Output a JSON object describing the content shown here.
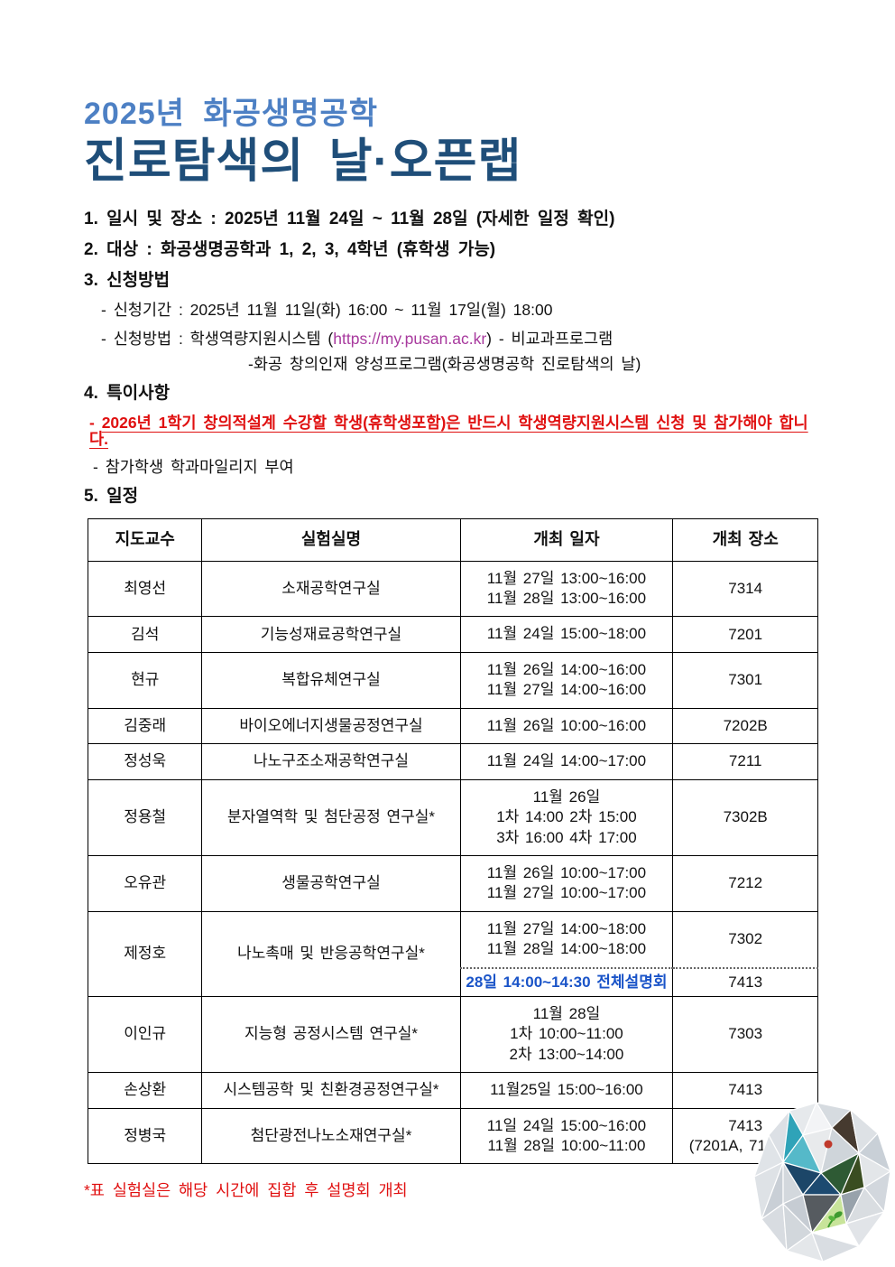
{
  "title": {
    "line1": "2025년 화공생명공학",
    "line2": "진로탐색의 날·오픈랩"
  },
  "notice": {
    "item1": "1. 일시 및 장소 : 2025년 11월 24일 ~ 11월 28일 (자세한 일정 확인)",
    "item2": "2. 대상 : 화공생명공학과 1, 2, 3, 4학년 (휴학생 가능)",
    "item3": "3. 신청방법",
    "item3_sub1": "- 신청기간 : 2025년 11월 11일(화) 16:00 ~ 11월 17일(월) 18:00",
    "item3_sub2_prefix": "- 신청방법 : 학생역량지원시스템 (",
    "item3_sub2_link": "https://my.pusan.ac.kr",
    "item3_sub2_suffix": ") - 비교과프로그램",
    "item3_sub3": "-화공 창의인재 양성프로그램(화공생명공학 진로탐색의 날)",
    "item4": "4. 특이사항",
    "item4_sub1_dash": "-",
    "item4_sub1": "2026년 1학기 창의적설계 수강할 학생(휴학생포함)은 반드시 학생역량지원시스템 신청 및 참가해야 합니다.",
    "item4_sub2": "- 참가학생 학과마일리지 부여",
    "item5": "5. 일정"
  },
  "schedule": {
    "columns": [
      "지도교수",
      "실험실명",
      "개최 일자",
      "개최 장소"
    ],
    "rows": [
      {
        "professor": "최영선",
        "lab": "소재공학연구실",
        "dates": [
          "11월 27일 13:00~16:00",
          "11월 28일 13:00~16:00"
        ],
        "location": "7314"
      },
      {
        "professor": "김석",
        "lab": "기능성재료공학연구실",
        "dates": [
          "11월 24일 15:00~18:00"
        ],
        "location": "7201"
      },
      {
        "professor": "현규",
        "lab": "복합유체연구실",
        "dates": [
          "11월 26일 14:00~16:00",
          "11월 27일 14:00~16:00"
        ],
        "location": "7301"
      },
      {
        "professor": "김중래",
        "lab": "바이오에너지생물공정연구실",
        "dates": [
          "11월 26일 10:00~16:00"
        ],
        "location": "7202B"
      },
      {
        "professor": "정성욱",
        "lab": "나노구조소재공학연구실",
        "dates": [
          "11월 24일 14:00~17:00"
        ],
        "location": "7211"
      },
      {
        "professor": "정용철",
        "lab": "분자열역학 및 첨단공정 연구실*",
        "dates": [
          "11월 26일",
          "1차 14:00 2차 15:00",
          "3차 16:00 4차 17:00"
        ],
        "location": "7302B"
      },
      {
        "professor": "오유관",
        "lab": "생물공학연구실",
        "dates": [
          "11월 26일 10:00~17:00",
          "11월 27일 10:00~17:00"
        ],
        "location": "7212"
      },
      {
        "professor": "제정호",
        "lab": "나노촉매 및 반응공학연구실*",
        "dates": [
          "11월 27일 14:00~18:00",
          "11월 28일 14:00~18:00"
        ],
        "location": "7302",
        "sub": {
          "date": "28일 14:00~14:30 전체설명회",
          "location": "7413"
        }
      },
      {
        "professor": "이인규",
        "lab": "지능형 공정시스템 연구실*",
        "dates": [
          "11월 28일",
          "1차 10:00~11:00",
          "2차 13:00~14:00"
        ],
        "location": "7303"
      },
      {
        "professor": "손상환",
        "lab": "시스템공학 및 친환경공정연구실*",
        "dates": [
          "11월25일 15:00~16:00"
        ],
        "location": "7413"
      },
      {
        "professor": "정병국",
        "lab": "첨단광전나노소재연구실*",
        "dates": [
          "11일 24일 15:00~16:00",
          "11월 28일 10:00~11:00"
        ],
        "location": "7413",
        "location2": "(7201A, 7102-1)"
      }
    ]
  },
  "footer": {
    "note": "*표 실험실은 해당 시간에 집합 후 설명회 개최"
  },
  "colors": {
    "title_light_blue": "#4d80c4",
    "title_dark_blue": "#1f4e79",
    "warning_red": "#e01010",
    "link_purple": "#a83a9e",
    "table_highlight_blue": "#1a54c8"
  }
}
